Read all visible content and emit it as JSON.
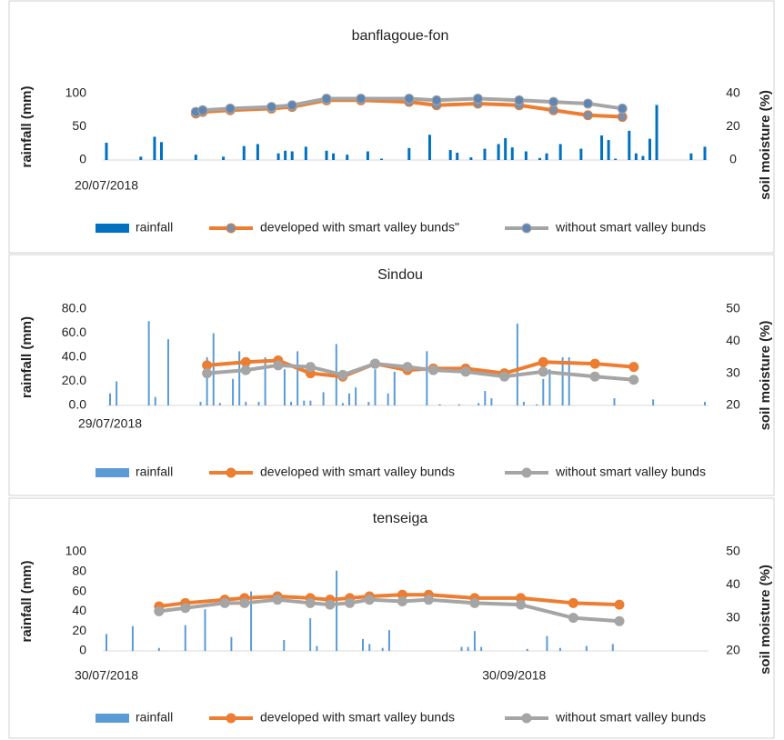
{
  "chart_data": [
    {
      "type": "bar",
      "title": "banflagoue-fon",
      "y_label": "rainfall (mm)",
      "y2_label": "soil moisture (%)",
      "categories": [
        "20/07/2018",
        null,
        null,
        null,
        null,
        null,
        null,
        null,
        null,
        null,
        null,
        null,
        null,
        null,
        null,
        null,
        null,
        null,
        null,
        null,
        null,
        null,
        null,
        null,
        null,
        null,
        null,
        null,
        null,
        null,
        null,
        null,
        null,
        null,
        null,
        null,
        null,
        null,
        null,
        null,
        null,
        null,
        null,
        null,
        null,
        null,
        null,
        null,
        null,
        null,
        null,
        null,
        null,
        null,
        null,
        null,
        null,
        null,
        null,
        null,
        null,
        null,
        null,
        null,
        null,
        null,
        null,
        null,
        null,
        null,
        null,
        null,
        null,
        null,
        null,
        null,
        null,
        null,
        null,
        null,
        null,
        null,
        null,
        null,
        null,
        null,
        null,
        null
      ],
      "ylim": [
        0,
        100
      ],
      "yticks": [
        0,
        50,
        100
      ],
      "y2lim": [
        0,
        40
      ],
      "y2ticks": [
        0,
        20,
        40
      ],
      "series": [
        {
          "name": "rainfall",
          "color": "#0070c0",
          "values": [
            26,
            0,
            0,
            0,
            0,
            5,
            0,
            35,
            27,
            0,
            0,
            0,
            0,
            8,
            0,
            0,
            0,
            5,
            0,
            0,
            21,
            0,
            24,
            0,
            0,
            10,
            14,
            13,
            0,
            20,
            0,
            0,
            14,
            10,
            0,
            8,
            0,
            0,
            13,
            0,
            2,
            0,
            0,
            0,
            18,
            0,
            0,
            38,
            0,
            0,
            15,
            11,
            0,
            4,
            0,
            17,
            0,
            24,
            33,
            19,
            0,
            13,
            0,
            3,
            10,
            0,
            24,
            0,
            0,
            17,
            0,
            0,
            37,
            30,
            2,
            0,
            44,
            10,
            6,
            32,
            83,
            0,
            0,
            0,
            0,
            10,
            0,
            20
          ]
        },
        {
          "name": "developed with smart valley bunds\"",
          "color": "#ed7d31",
          "marker_color": "#7f8fa6",
          "axis": "y2",
          "x": [
            13,
            14,
            18,
            24,
            27,
            32,
            37,
            44,
            48,
            54,
            60,
            65,
            70,
            75
          ],
          "values": [
            28,
            29,
            30,
            31,
            32,
            36,
            36,
            35,
            33,
            34,
            33,
            30,
            27,
            26
          ]
        },
        {
          "name": "without smart valley bunds",
          "color": "#a5a5a5",
          "marker_color": "#5f86b3",
          "axis": "y2",
          "x": [
            13,
            14,
            18,
            24,
            27,
            32,
            37,
            44,
            48,
            54,
            60,
            65,
            70,
            75
          ],
          "values": [
            29,
            30,
            31,
            32,
            33,
            37,
            37,
            37,
            36,
            37,
            36,
            35,
            34,
            31
          ]
        }
      ]
    },
    {
      "type": "bar",
      "title": "Sindou",
      "y_label": "rainfall (mm)",
      "y2_label": "soil moisture (%)",
      "categories": [
        "29/07/2018",
        null,
        null,
        null,
        null,
        null,
        null,
        null,
        null,
        null,
        null,
        null,
        null,
        null,
        null,
        null,
        null,
        null,
        null,
        null,
        null,
        null,
        null,
        null,
        null,
        null,
        null,
        null,
        null,
        null,
        null,
        null,
        null,
        null,
        null,
        null,
        null,
        null,
        null,
        null,
        null,
        null,
        null,
        null,
        null,
        null,
        null,
        null,
        null,
        null,
        null,
        null,
        null,
        null,
        null,
        null,
        null,
        null,
        null,
        null,
        null,
        null,
        null,
        null,
        null,
        null,
        null,
        null,
        null,
        null,
        null,
        null,
        null,
        null,
        null,
        null,
        null,
        null,
        null,
        null,
        null,
        null,
        null,
        null,
        null,
        null,
        null,
        null,
        null,
        null,
        null,
        null,
        null
      ],
      "ylim": [
        0,
        80
      ],
      "yticks": [
        {
          "value": 0,
          "label": "0.0"
        },
        {
          "value": 20,
          "label": "20.0"
        },
        {
          "value": 40,
          "label": "40.0"
        },
        {
          "value": 60,
          "label": "60.0"
        },
        {
          "value": 80,
          "label": "80.0"
        }
      ],
      "y2lim": [
        20,
        50
      ],
      "y2ticks": [
        20,
        30,
        40,
        50
      ],
      "series": [
        {
          "name": "rainfall",
          "color": "#5b9bd5",
          "values": [
            10,
            20,
            0,
            0,
            0,
            0,
            70,
            7,
            0,
            55,
            0,
            0,
            0,
            0,
            3,
            40,
            60,
            2,
            0,
            22,
            45,
            3,
            0,
            3,
            40,
            0,
            0,
            30,
            3,
            45,
            4,
            4,
            0,
            11,
            0,
            51,
            2,
            10,
            15,
            0,
            3,
            30,
            0,
            10,
            28,
            0,
            0,
            0,
            0,
            45,
            0,
            1,
            0,
            0,
            1,
            0,
            0,
            2,
            12,
            6,
            0,
            0,
            0,
            68,
            3,
            0,
            1,
            22,
            30,
            0,
            40,
            40,
            0,
            0,
            0,
            0,
            0,
            0,
            6,
            0,
            0,
            0,
            0,
            0,
            5,
            0,
            0,
            0,
            0,
            0,
            0,
            0,
            3
          ]
        },
        {
          "name": "developed with smart valley bunds",
          "color": "#ed7d31",
          "axis": "y2",
          "x": [
            15,
            21,
            26,
            31,
            36,
            41,
            46,
            50,
            55,
            61,
            67,
            75,
            81
          ],
          "values": [
            32.5,
            33.5,
            34,
            30,
            29,
            33,
            31,
            31.5,
            31.5,
            30,
            33.5,
            33,
            32
          ]
        },
        {
          "name": "without smart valley bunds",
          "color": "#a5a5a5",
          "axis": "y2",
          "x": [
            15,
            21,
            26,
            31,
            36,
            41,
            46,
            50,
            55,
            61,
            67,
            75,
            81
          ],
          "values": [
            30,
            31,
            32.5,
            32,
            29.5,
            33,
            32,
            31,
            30.5,
            29,
            30.5,
            29,
            28
          ]
        }
      ]
    },
    {
      "type": "bar",
      "title": "tenseiga",
      "y_label": "rainfall (mm)",
      "y2_label": "soil moisture (%)",
      "categories": [
        "30/07/2018",
        null,
        null,
        null,
        null,
        null,
        null,
        null,
        null,
        null,
        null,
        null,
        null,
        null,
        null,
        null,
        null,
        null,
        null,
        null,
        null,
        null,
        null,
        null,
        null,
        null,
        null,
        null,
        null,
        null,
        null,
        null,
        null,
        null,
        null,
        null,
        null,
        null,
        null,
        null,
        null,
        null,
        null,
        null,
        null,
        null,
        null,
        null,
        null,
        null,
        null,
        null,
        null,
        null,
        null,
        null,
        null,
        null,
        null,
        null,
        null,
        null,
        "30/09/2018",
        null,
        null,
        null,
        null,
        null,
        null,
        null,
        null,
        null,
        null,
        null,
        null,
        null,
        null,
        null,
        null,
        null,
        null,
        null,
        null,
        null,
        null,
        null,
        null,
        null,
        null,
        null,
        null,
        null
      ],
      "ylim": [
        0,
        100
      ],
      "yticks": [
        0,
        20,
        40,
        60,
        80,
        100
      ],
      "y2lim": [
        20,
        50
      ],
      "y2ticks": [
        20,
        30,
        40,
        50
      ],
      "series": [
        {
          "name": "rainfall",
          "color": "#5b9bd5",
          "values": [
            17,
            0,
            0,
            0,
            25,
            0,
            0,
            0,
            3,
            0,
            0,
            0,
            26,
            0,
            0,
            42,
            0,
            0,
            0,
            14,
            0,
            0,
            60,
            0,
            0,
            0,
            0,
            11,
            0,
            0,
            0,
            33,
            5,
            0,
            0,
            81,
            0,
            0,
            0,
            12,
            7,
            0,
            3,
            21,
            0,
            0,
            0,
            0,
            0,
            0,
            0,
            0,
            0,
            0,
            4,
            4,
            20,
            4,
            0,
            0,
            0,
            0,
            0,
            0,
            2,
            0,
            0,
            15,
            0,
            3,
            0,
            0,
            0,
            5,
            0,
            0,
            0,
            7,
            0,
            0,
            0,
            0,
            0,
            0,
            0,
            0,
            0,
            0,
            0,
            0,
            0,
            0
          ]
        },
        {
          "name": "developed with smart valley bunds",
          "color": "#ed7d31",
          "axis": "y2",
          "x": [
            8,
            12,
            18,
            21,
            26,
            31,
            34,
            37,
            40,
            45,
            49,
            56,
            63,
            71,
            78
          ],
          "values": [
            33.5,
            34.5,
            35.5,
            36,
            36.5,
            36,
            35.5,
            36,
            36.5,
            37,
            37,
            36,
            36,
            34.5,
            34
          ]
        },
        {
          "name": "without smart valley bunds",
          "color": "#a5a5a5",
          "axis": "y2",
          "x": [
            8,
            12,
            18,
            21,
            26,
            31,
            34,
            37,
            40,
            45,
            49,
            56,
            63,
            71,
            78
          ],
          "values": [
            32,
            33,
            34.5,
            34.5,
            35.5,
            34.5,
            34,
            34.5,
            35.5,
            35,
            35.5,
            34.5,
            34,
            30,
            29
          ]
        }
      ]
    }
  ]
}
